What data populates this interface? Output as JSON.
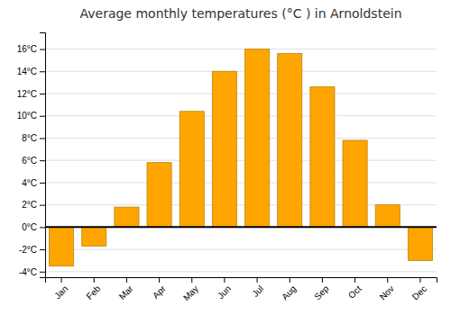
{
  "chart_data": {
    "type": "bar",
    "title": "Average monthly temperatures (°C ) in Arnoldstein",
    "categories": [
      "Jan",
      "Feb",
      "Mar",
      "Apr",
      "May",
      "Jun",
      "Jul",
      "Aug",
      "Sep",
      "Oct",
      "Nov",
      "Dec"
    ],
    "values": [
      -3.5,
      -1.7,
      1.8,
      5.8,
      10.4,
      14.0,
      16.0,
      15.6,
      12.6,
      7.8,
      2.0,
      -3.0
    ],
    "color": "#FFA500",
    "ylim": [
      -4.5,
      17.5
    ],
    "yticks": [
      {
        "value": -4,
        "label": "-4°C"
      },
      {
        "value": -2,
        "label": "-2°C"
      },
      {
        "value": 0,
        "label": "0°C"
      },
      {
        "value": 2,
        "label": "2°C"
      },
      {
        "value": 4,
        "label": "4°C"
      },
      {
        "value": 6,
        "label": "6°C"
      },
      {
        "value": 8,
        "label": "8°C"
      },
      {
        "value": 10,
        "label": "10°C"
      },
      {
        "value": 12,
        "label": "12°C"
      },
      {
        "value": 14,
        "label": "14°C"
      },
      {
        "value": 16,
        "label": "16°C"
      }
    ],
    "grid": true
  }
}
